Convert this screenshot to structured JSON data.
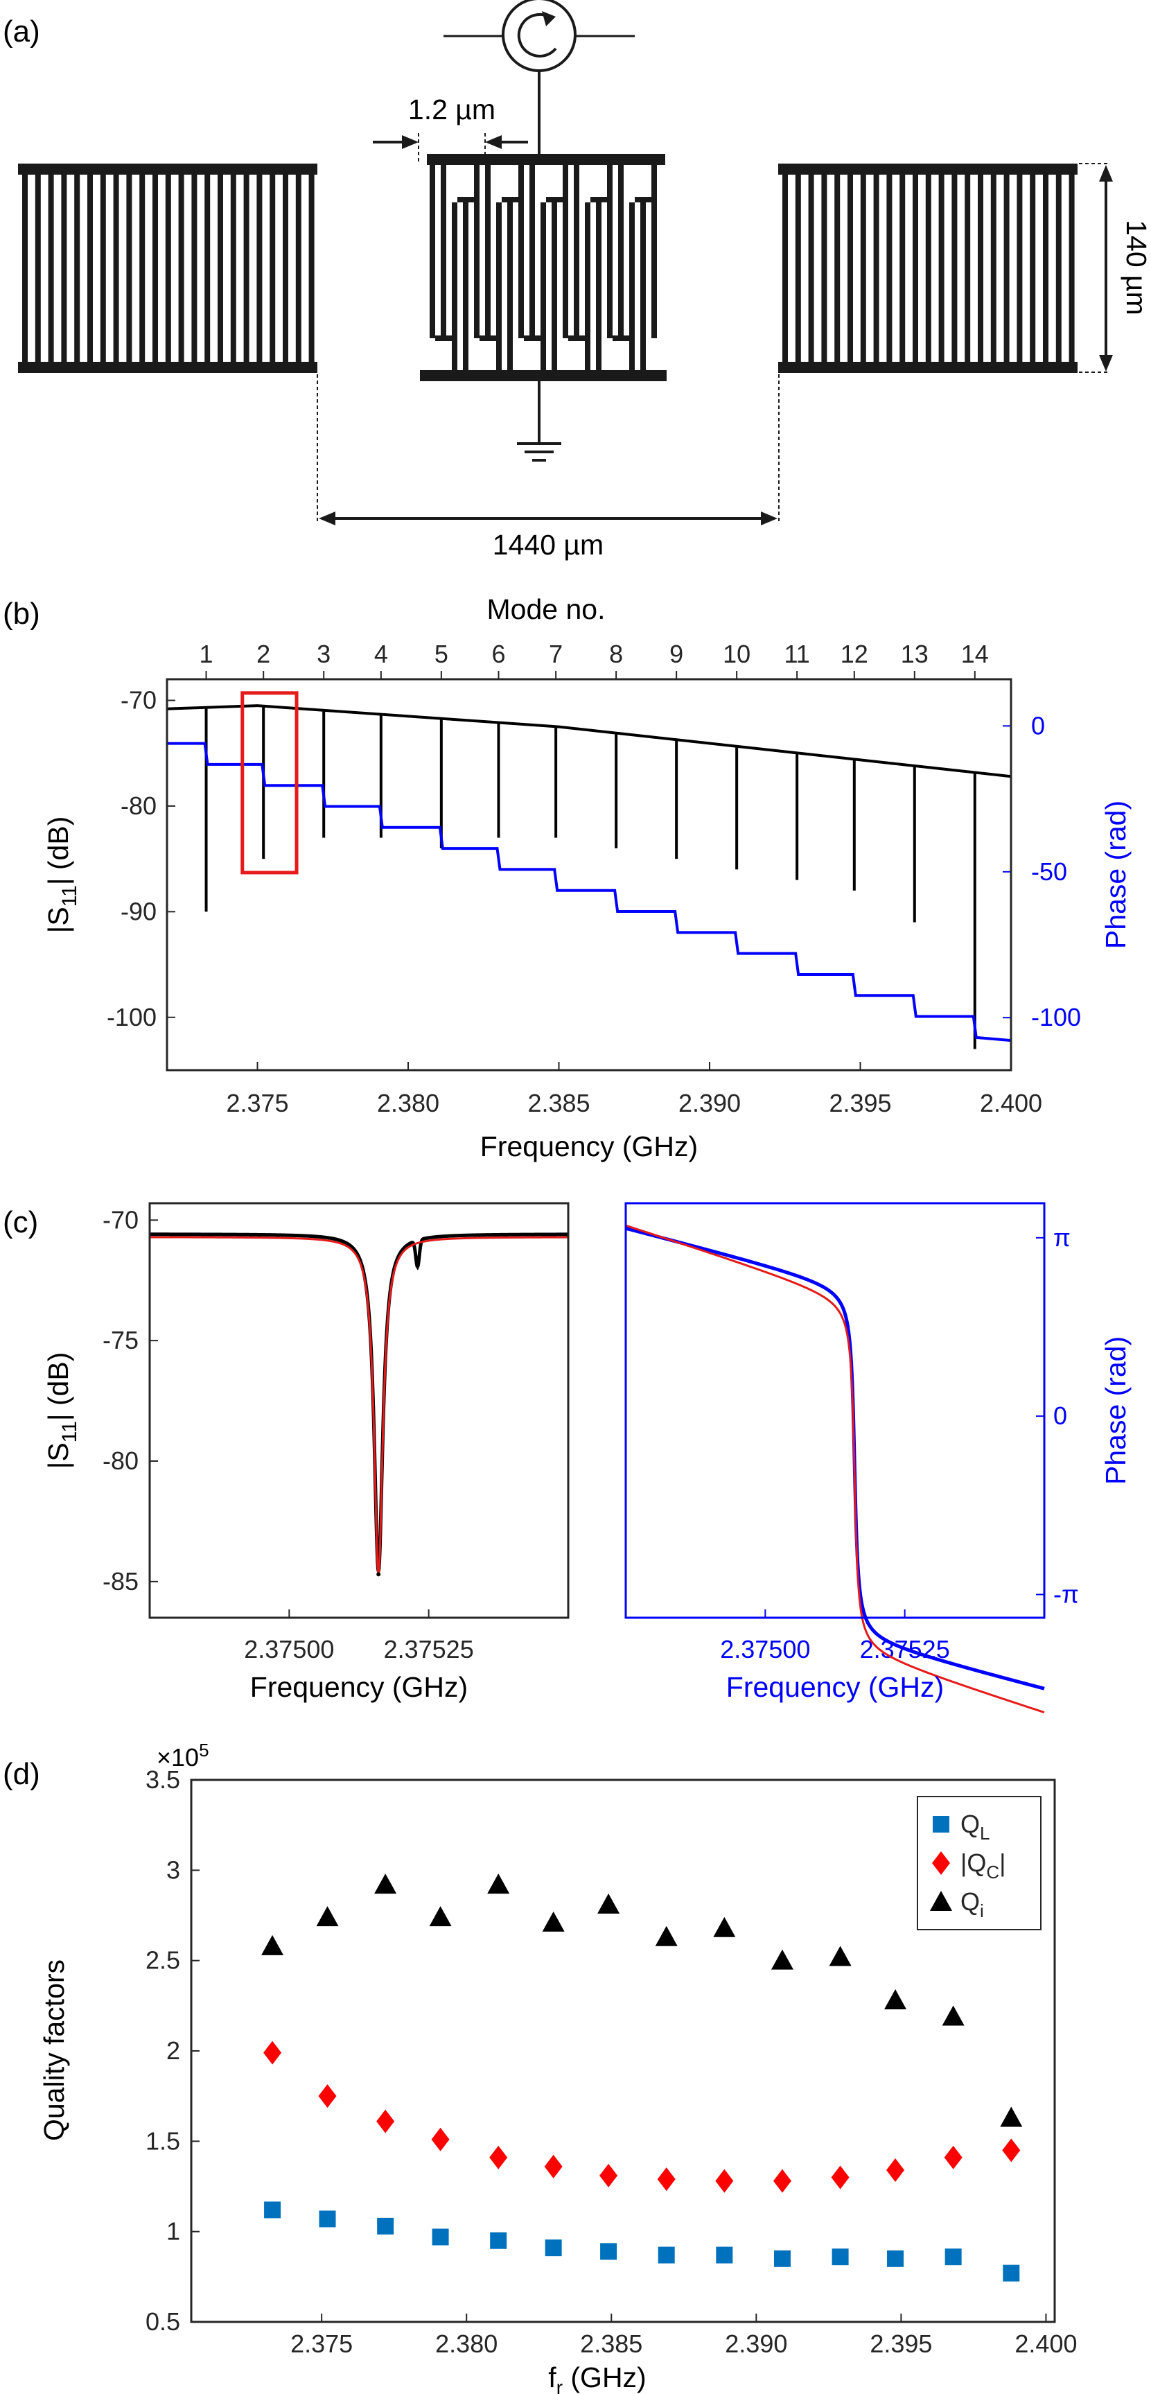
{
  "chart_data": [
    {
      "panel": "(a)",
      "type": "diagram",
      "labels": {
        "finger_gap": "1.2 µm",
        "height": "140 µm",
        "spacing": "1440 µm"
      }
    },
    {
      "panel": "(b)",
      "type": "line",
      "xlabel": "Frequency (GHz)",
      "ylabel": "|S11| (dB)",
      "ylabel_main": "|S",
      "ylabel_sub": "11",
      "ylabel_tail": "| (dB)",
      "ylabel_right": "Phase (rad)",
      "top_label": "Mode no.",
      "xlim": [
        2.372,
        2.4
      ],
      "ylim": [
        -105,
        -68
      ],
      "ylim_right": [
        -118,
        16
      ],
      "x_ticks": [
        "2.375",
        "2.380",
        "2.385",
        "2.390",
        "2.395",
        "2.400"
      ],
      "y_ticks": [
        "-70",
        "-80",
        "-90",
        "-100"
      ],
      "y_ticks_right": [
        "0",
        "-50",
        "-100"
      ],
      "mode_ticks": [
        "1",
        "2",
        "3",
        "4",
        "5",
        "6",
        "7",
        "8",
        "9",
        "10",
        "11",
        "12",
        "13",
        "14"
      ],
      "mode_frequencies": [
        2.3733,
        2.3752,
        2.3772,
        2.3791,
        2.3811,
        2.383,
        2.3849,
        2.3869,
        2.3889,
        2.3909,
        2.3929,
        2.3948,
        2.3968,
        2.3988
      ],
      "dip_minimum_dB": [
        -90,
        -85,
        -83,
        -83,
        -84,
        -83,
        -83,
        -84,
        -85,
        -86,
        -87,
        -88,
        -91,
        -103
      ],
      "baseline_dB": [
        [
          2.372,
          -70.8
        ],
        [
          2.375,
          -70.5
        ],
        [
          2.385,
          -72.5
        ],
        [
          2.4,
          -77.2
        ]
      ],
      "phase_start_rad": -6,
      "phase_step_rad": -7.2,
      "highlight_box": {
        "x": [
          2.3745,
          2.3763
        ],
        "y": [
          -69.3,
          -86.3
        ],
        "color": "#e51b1b"
      },
      "series": [
        {
          "name": "|S11|",
          "color": "#000000",
          "axis": "left"
        },
        {
          "name": "Phase",
          "color": "#0000ff",
          "axis": "right"
        }
      ]
    },
    {
      "panel": "(c) left",
      "type": "line",
      "xlabel": "Frequency (GHz)",
      "ylabel_main": "|S",
      "ylabel_sub": "11",
      "ylabel_tail": "| (dB)",
      "xlim": [
        2.37475,
        2.3755
      ],
      "ylim": [
        -86.5,
        -69.3
      ],
      "x_ticks": [
        "2.37500",
        "2.37525"
      ],
      "y_ticks": [
        "-70",
        "-75",
        "-80",
        "-85"
      ],
      "resonance_GHz": 2.37516,
      "min_dB": -84.7,
      "baseline_dB": -70.7,
      "secondary_dip": {
        "f": 2.37523,
        "depth_dB": -1.1
      },
      "series": [
        {
          "name": "data",
          "color": "#000000"
        },
        {
          "name": "fit",
          "color": "#e51b1b"
        }
      ]
    },
    {
      "panel": "(c) right",
      "type": "line",
      "xlabel": "Frequency (GHz)",
      "ylabel_right": "Phase (rad)",
      "xlim": [
        2.37475,
        2.3755
      ],
      "ylim": [
        -3.55,
        3.75
      ],
      "x_ticks": [
        "2.37500",
        "2.37525"
      ],
      "y_ticks_right": [
        "π",
        "0",
        "-π"
      ],
      "resonance_GHz": 2.37516,
      "series": [
        {
          "name": "data",
          "color": "#0000ff"
        },
        {
          "name": "fit",
          "color": "#e51b1b"
        }
      ]
    },
    {
      "panel": "(d)",
      "type": "scatter",
      "xlabel_main": "f",
      "xlabel_sub": "r",
      "xlabel_tail": " (GHz)",
      "ylabel": "Quality factors",
      "exponent": "×10",
      "exponent_power": "5",
      "xlim": [
        2.3705,
        2.4003
      ],
      "ylim": [
        0.5,
        3.5
      ],
      "x_ticks": [
        "2.375",
        "2.380",
        "2.385",
        "2.390",
        "2.395",
        "2.400"
      ],
      "y_ticks": [
        "0.5",
        "1",
        "1.5",
        "2",
        "2.5",
        "3",
        "3.5"
      ],
      "x": [
        2.3733,
        2.3752,
        2.3772,
        2.3791,
        2.3811,
        2.383,
        2.3849,
        2.3869,
        2.3889,
        2.3909,
        2.3929,
        2.3948,
        2.3968,
        2.3988
      ],
      "series": [
        {
          "name": "QL",
          "label_main": "Q",
          "label_sub": "L",
          "label_tail": "",
          "label_pre": "",
          "marker": "square",
          "color": "#0072bd",
          "values": [
            1.12,
            1.07,
            1.03,
            0.97,
            0.95,
            0.91,
            0.89,
            0.87,
            0.87,
            0.85,
            0.86,
            0.85,
            0.86,
            0.77
          ]
        },
        {
          "name": "|QC|",
          "label_main": "Q",
          "label_sub": "C",
          "label_tail": "|",
          "label_pre": "|",
          "marker": "diamond",
          "color": "#ff0000",
          "values": [
            1.99,
            1.75,
            1.61,
            1.51,
            1.41,
            1.36,
            1.31,
            1.29,
            1.28,
            1.28,
            1.3,
            1.34,
            1.41,
            1.45
          ]
        },
        {
          "name": "Qi",
          "label_main": "Q",
          "label_sub": "i",
          "label_tail": "",
          "label_pre": "",
          "marker": "triangle",
          "color": "#000000",
          "values": [
            2.58,
            2.74,
            2.92,
            2.74,
            2.92,
            2.71,
            2.81,
            2.63,
            2.68,
            2.5,
            2.52,
            2.28,
            2.19,
            1.63
          ]
        }
      ]
    }
  ]
}
